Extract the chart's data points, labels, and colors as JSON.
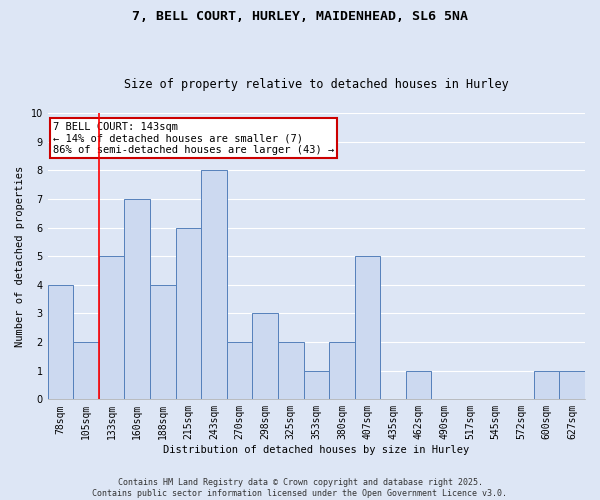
{
  "title_line1": "7, BELL COURT, HURLEY, MAIDENHEAD, SL6 5NA",
  "title_line2": "Size of property relative to detached houses in Hurley",
  "xlabel": "Distribution of detached houses by size in Hurley",
  "ylabel": "Number of detached properties",
  "categories": [
    "78sqm",
    "105sqm",
    "133sqm",
    "160sqm",
    "188sqm",
    "215sqm",
    "243sqm",
    "270sqm",
    "298sqm",
    "325sqm",
    "353sqm",
    "380sqm",
    "407sqm",
    "435sqm",
    "462sqm",
    "490sqm",
    "517sqm",
    "545sqm",
    "572sqm",
    "600sqm",
    "627sqm"
  ],
  "values": [
    4,
    2,
    5,
    7,
    4,
    6,
    8,
    2,
    3,
    2,
    1,
    2,
    5,
    0,
    1,
    0,
    0,
    0,
    0,
    1,
    1
  ],
  "bar_color": "#ccd9f0",
  "bar_edge_color": "#5580bb",
  "red_line_index": 2,
  "annotation_text": "7 BELL COURT: 143sqm\n← 14% of detached houses are smaller (7)\n86% of semi-detached houses are larger (43) →",
  "annotation_box_facecolor": "#ffffff",
  "annotation_box_edgecolor": "#cc0000",
  "ylim": [
    0,
    10
  ],
  "yticks": [
    0,
    1,
    2,
    3,
    4,
    5,
    6,
    7,
    8,
    9,
    10
  ],
  "background_color": "#dde6f5",
  "grid_color": "#ffffff",
  "footer_text": "Contains HM Land Registry data © Crown copyright and database right 2025.\nContains public sector information licensed under the Open Government Licence v3.0.",
  "title_fontsize": 9.5,
  "subtitle_fontsize": 8.5,
  "axis_label_fontsize": 7.5,
  "tick_fontsize": 7,
  "annotation_fontsize": 7.5,
  "footer_fontsize": 6
}
